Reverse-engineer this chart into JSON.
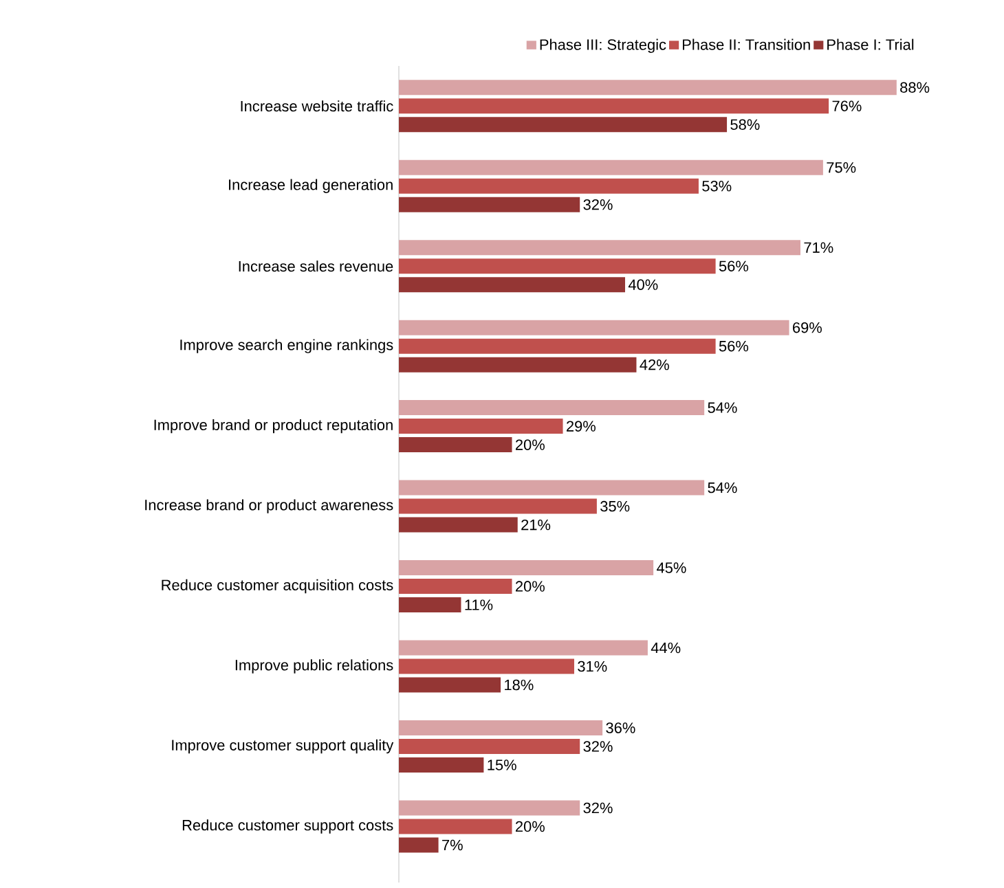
{
  "chart_data": {
    "type": "bar",
    "orientation": "horizontal",
    "legend": "top right",
    "tick_labels": "y",
    "categories": [
      "Increase website traffic",
      "Increase lead generation",
      "Increase sales revenue",
      "Improve search engine rankings",
      "Improve brand or product reputation",
      "Increase brand or product awareness",
      "Reduce customer acquisition costs",
      "Improve public relations",
      "Improve customer support quality",
      "Reduce customer support costs"
    ],
    "series": [
      {
        "name": "Phase III: Strategic",
        "color": "#d9a3a5",
        "values": [
          88,
          75,
          71,
          69,
          54,
          54,
          45,
          44,
          36,
          32
        ],
        "value_labels": [
          "88%",
          "75%",
          "71%",
          "69%",
          "54%",
          "54%",
          "45%",
          "44%",
          "36%",
          "32%"
        ]
      },
      {
        "name": "Phase II: Transition",
        "color": "#c0504d",
        "values": [
          76,
          53,
          56,
          56,
          29,
          35,
          20,
          31,
          32,
          20
        ],
        "value_labels": [
          "76%",
          "53%",
          "56%",
          "56%",
          "29%",
          "35%",
          "20%",
          "31%",
          "32%",
          "20%"
        ]
      },
      {
        "name": "Phase I: Trial",
        "color": "#943634",
        "values": [
          58,
          32,
          40,
          42,
          20,
          21,
          11,
          18,
          15,
          7
        ],
        "value_labels": [
          "58%",
          "32%",
          "40%",
          "42%",
          "20%",
          "21%",
          "11%",
          "18%",
          "15%",
          "7%"
        ]
      }
    ]
  }
}
